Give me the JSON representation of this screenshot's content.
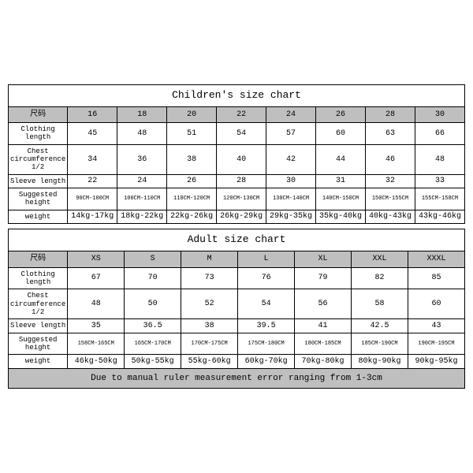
{
  "children": {
    "title": "Children's size chart",
    "header_label": "尺码",
    "sizes": [
      "16",
      "18",
      "20",
      "22",
      "24",
      "26",
      "28",
      "30"
    ],
    "rows": [
      {
        "label": "Clothing length",
        "values": [
          "45",
          "48",
          "51",
          "54",
          "57",
          "60",
          "63",
          "66"
        ],
        "small": false
      },
      {
        "label": "Chest circumference 1/2",
        "values": [
          "34",
          "36",
          "38",
          "40",
          "42",
          "44",
          "46",
          "48"
        ],
        "small": false
      },
      {
        "label": "Sleeve length",
        "values": [
          "22",
          "24",
          "26",
          "28",
          "30",
          "31",
          "32",
          "33"
        ],
        "small": false
      },
      {
        "label": "Suggested height",
        "values": [
          "90CM-100CM",
          "100CM-110CM",
          "110CM-120CM",
          "120CM-130CM",
          "130CM-140CM",
          "140CM-150CM",
          "150CM-155CM",
          "155CM-158CM"
        ],
        "small": true
      },
      {
        "label": "weight",
        "values": [
          "14kg-17kg",
          "18kg-22kg",
          "22kg-26kg",
          "26kg-29kg",
          "29kg-35kg",
          "35kg-40kg",
          "40kg-43kg",
          "43kg-46kg"
        ],
        "small": false
      }
    ]
  },
  "adult": {
    "title": "Adult size chart",
    "header_label": "尺码",
    "sizes": [
      "XS",
      "S",
      "M",
      "L",
      "XL",
      "XXL",
      "XXXL"
    ],
    "rows": [
      {
        "label": "Clothing length",
        "values": [
          "67",
          "70",
          "73",
          "76",
          "79",
          "82",
          "85"
        ],
        "small": false
      },
      {
        "label": "Chest circumference 1/2",
        "values": [
          "48",
          "50",
          "52",
          "54",
          "56",
          "58",
          "60"
        ],
        "small": false
      },
      {
        "label": "Sleeve length",
        "values": [
          "35",
          "36.5",
          "38",
          "39.5",
          "41",
          "42.5",
          "43"
        ],
        "small": false
      },
      {
        "label": "Suggested height",
        "values": [
          "158CM-165CM",
          "165CM-170CM",
          "170CM-175CM",
          "175CM-180CM",
          "180CM-185CM",
          "185CM-190CM",
          "190CM-195CM"
        ],
        "small": true
      },
      {
        "label": "weight",
        "values": [
          "46kg-50kg",
          "50kg-55kg",
          "55kg-60kg",
          "60kg-70kg",
          "70kg-80kg",
          "80kg-90kg",
          "90kg-95kg"
        ],
        "small": false
      }
    ],
    "note": "Due to manual ruler measurement error ranging from 1-3cm"
  },
  "colors": {
    "header_bg": "#bfbfbf",
    "border": "#000000",
    "background": "#ffffff"
  }
}
